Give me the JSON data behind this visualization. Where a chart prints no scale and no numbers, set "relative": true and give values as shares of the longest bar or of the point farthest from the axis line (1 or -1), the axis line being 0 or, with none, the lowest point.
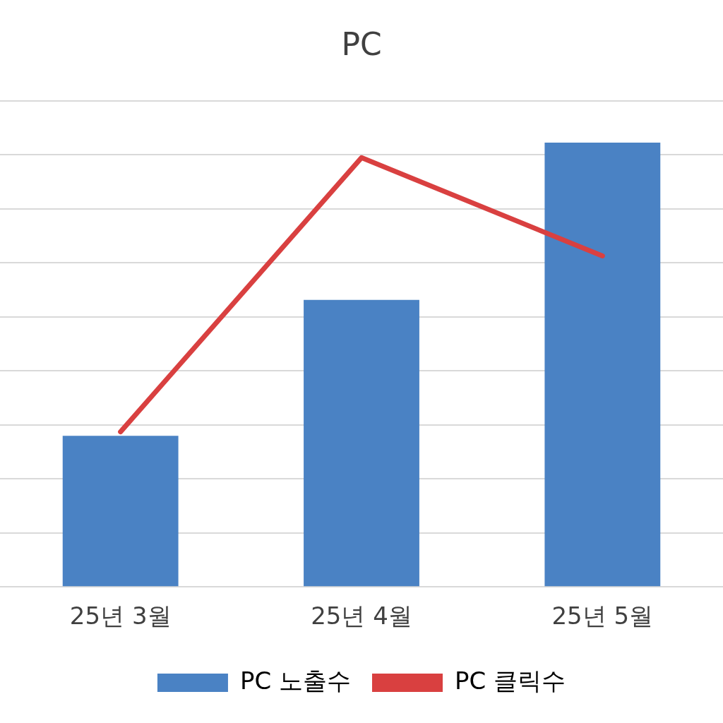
{
  "chart_data": {
    "type": "bar",
    "title": "PC",
    "relative": true,
    "categories": [
      "25년 3월",
      "25년 4월",
      "25년 5월"
    ],
    "series": [
      {
        "name": "PC 노출수",
        "color": "#4a82c4",
        "values": [
          0.34,
          0.646,
          1
        ]
      },
      {
        "name": "PC 클릭수",
        "type": "line",
        "color": "#d94040",
        "values": [
          0.349,
          0.966,
          0.745
        ]
      }
    ],
    "grid": "y",
    "legend": "bottom",
    "marker": "none",
    "line_style": "solid"
  }
}
